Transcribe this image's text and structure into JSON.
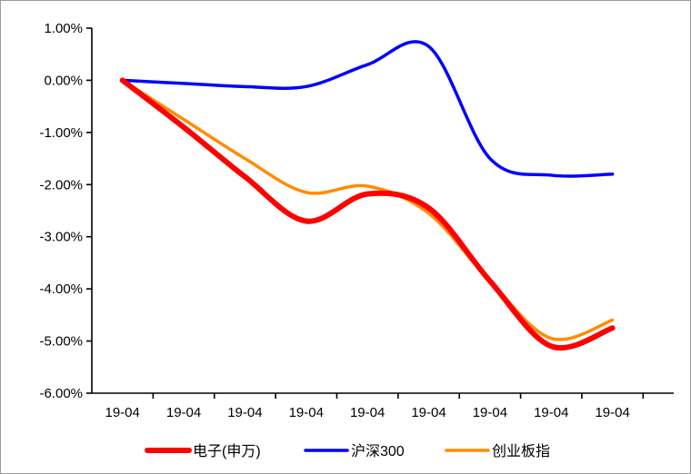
{
  "chart_data": {
    "type": "line",
    "title": "",
    "xlabel": "",
    "ylabel": "",
    "ylim": [
      -6,
      1
    ],
    "yticks": [
      1,
      0,
      -1,
      -2,
      -3,
      -4,
      -5,
      -6
    ],
    "ytick_labels": [
      "1.00%",
      "0.00%",
      "-1.00%",
      "-2.00%",
      "-3.00%",
      "-4.00%",
      "-5.00%",
      "-6.00%"
    ],
    "categories": [
      "19-04",
      "19-04",
      "19-04",
      "19-04",
      "19-04",
      "19-04",
      "19-04",
      "19-04",
      "19-04"
    ],
    "grid": false,
    "legend_position": "bottom",
    "series": [
      {
        "name": "电子(申万)",
        "color": "#ff0000",
        "values": [
          0.0,
          -0.9,
          -1.85,
          -2.7,
          -2.18,
          -2.45,
          -3.85,
          -5.1,
          -4.75
        ]
      },
      {
        "name": "沪深300",
        "color": "#0000ff",
        "values": [
          0.0,
          -0.06,
          -0.12,
          -0.12,
          0.3,
          0.65,
          -1.5,
          -1.82,
          -1.8
        ]
      },
      {
        "name": "创业板指",
        "color": "#ff8c00",
        "values": [
          0.0,
          -0.75,
          -1.5,
          -2.15,
          -2.03,
          -2.55,
          -3.85,
          -4.95,
          -4.6
        ]
      }
    ]
  }
}
